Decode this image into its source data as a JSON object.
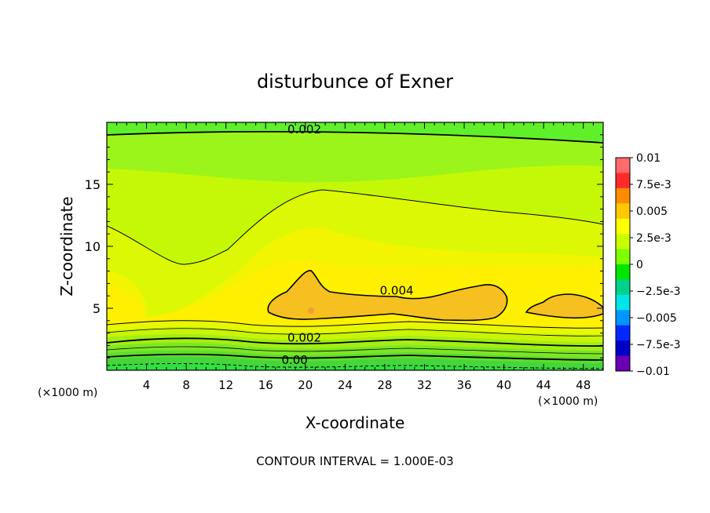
{
  "chart_data": {
    "type": "heatmap",
    "title": "disturbunce of Exner",
    "xlabel": "X-coordinate",
    "ylabel": "Z-coordinate",
    "x_unit_left": "(×1000 m)",
    "x_unit_right": "(×1000 m)",
    "footer": "CONTOUR INTERVAL = 1.000E-03",
    "xlim": [
      0,
      50
    ],
    "ylim": [
      0,
      20
    ],
    "x_ticks": [
      4,
      8,
      12,
      16,
      20,
      24,
      28,
      32,
      36,
      40,
      44,
      48
    ],
    "y_ticks": [
      5,
      10,
      15
    ],
    "contour_labels": [
      {
        "text": "0.002",
        "x": 18.2,
        "z": 19.1
      },
      {
        "text": "0.004",
        "x": 27.5,
        "z": 6.1
      },
      {
        "text": "0.002",
        "x": 18.2,
        "z": 2.3
      },
      {
        "text": "0.00",
        "x": 17.6,
        "z": 0.5
      }
    ],
    "colorbar": {
      "labels": [
        "0.01",
        "7.5e-3",
        "0.005",
        "2.5e-3",
        "0",
        "−2.5e-3",
        "−0.005",
        "−7.5e-3",
        "−0.01"
      ],
      "colors": [
        "#ff6a6a",
        "#ff2a2a",
        "#ff8c00",
        "#ffc800",
        "#ffff00",
        "#c8ff00",
        "#7cff00",
        "#00e600",
        "#00d28c",
        "#00e6e6",
        "#0096ff",
        "#0028ff",
        "#0000c8",
        "#6a00b4"
      ]
    }
  }
}
